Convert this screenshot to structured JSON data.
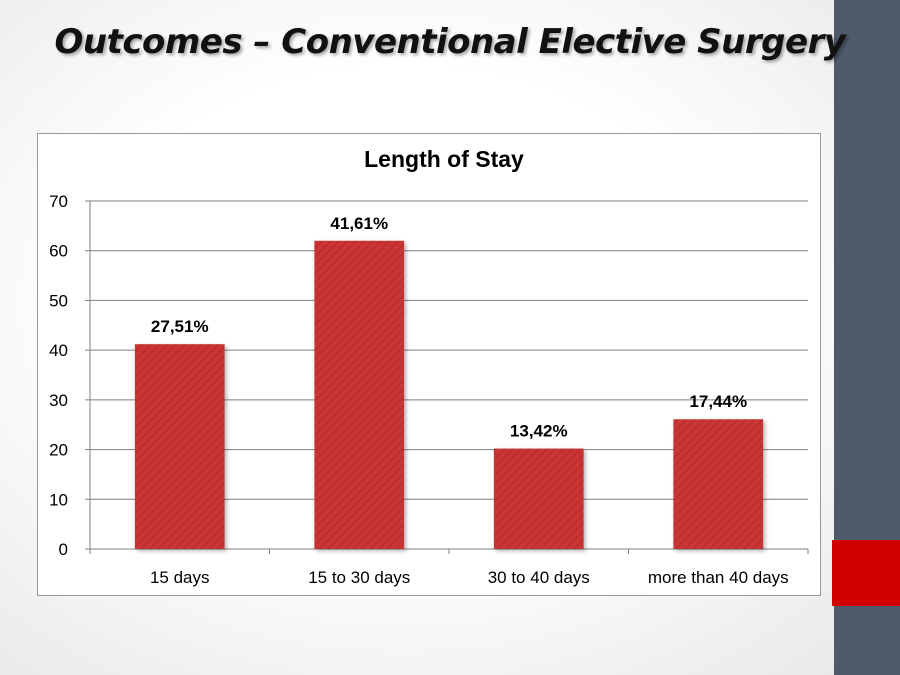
{
  "slide": {
    "title": "Outcomes – Conventional Elective Surgery"
  },
  "colors": {
    "bar": "#c93434",
    "side_bar": "#4e5a6c",
    "side_accent": "#d00000"
  },
  "chart_data": {
    "type": "bar",
    "title": "Length of Stay",
    "xlabel": "",
    "ylabel": "",
    "categories": [
      "15 days",
      "15 to 30 days",
      "30 to 40 days",
      "more than 40 days"
    ],
    "values": [
      41.2,
      62.0,
      20.2,
      26.1
    ],
    "data_labels": [
      "27,51%",
      "41,61%",
      "13,42%",
      "17,44%"
    ],
    "yticks": [
      0,
      10,
      20,
      30,
      40,
      50,
      60,
      70
    ],
    "ylim": [
      0,
      70
    ],
    "grid": true,
    "legend": "none"
  }
}
